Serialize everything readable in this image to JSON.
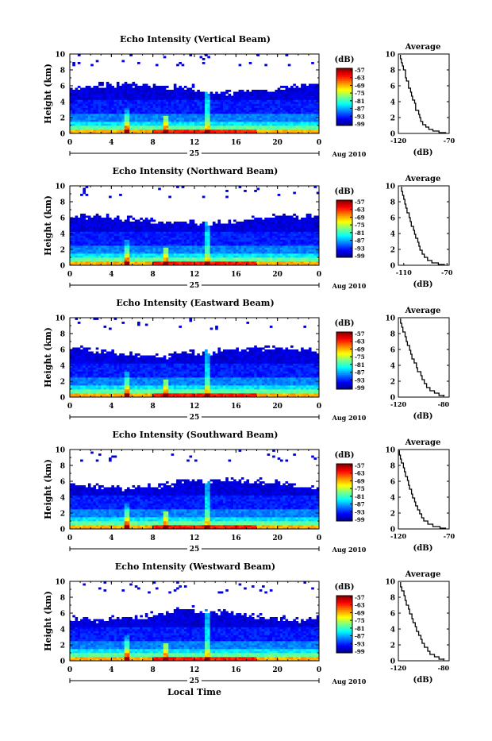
{
  "chart_data": [
    {
      "type": "heatmap",
      "title": "Echo Intensity (Vertical Beam)",
      "ylabel": "Height (km)",
      "xlabel": "",
      "x_ticks": [
        "0",
        "4",
        "8",
        "12",
        "16",
        "20",
        "0"
      ],
      "y_ticks": [
        "0",
        "2",
        "4",
        "6",
        "8",
        "10"
      ],
      "xlim": [
        0,
        24
      ],
      "ylim": [
        0,
        10
      ],
      "date_label": "25",
      "month_label": "Aug 2010",
      "colorbar": {
        "unit": "(dB)",
        "ticks": [
          "-57",
          "-63",
          "-69",
          "-75",
          "-81",
          "-87",
          "-93",
          "-99"
        ],
        "range": [
          -99,
          -57
        ]
      },
      "profile": {
        "title": "Average",
        "xlabel": "(dB)",
        "x_ticks": [
          "-120",
          "-70"
        ],
        "xlim": [
          -120,
          -70
        ],
        "points": [
          [
            -118,
            9.9
          ],
          [
            -117,
            9.4
          ],
          [
            -116,
            8.9
          ],
          [
            -115,
            8.5
          ],
          [
            -113,
            8.0
          ],
          [
            -113,
            7.5
          ],
          [
            -112,
            7.0
          ],
          [
            -110,
            6.6
          ],
          [
            -110,
            6.1
          ],
          [
            -108,
            5.7
          ],
          [
            -107,
            5.2
          ],
          [
            -106,
            4.7
          ],
          [
            -104,
            4.2
          ],
          [
            -103,
            3.8
          ],
          [
            -103,
            3.3
          ],
          [
            -100,
            2.9
          ],
          [
            -99,
            2.4
          ],
          [
            -98,
            2.0
          ],
          [
            -96,
            1.5
          ],
          [
            -93,
            1.1
          ],
          [
            -90,
            0.8
          ],
          [
            -86,
            0.5
          ],
          [
            -80,
            0.3
          ],
          [
            -73,
            0.1
          ]
        ]
      }
    },
    {
      "type": "heatmap",
      "title": "Echo Intensity (Northward Beam)",
      "ylabel": "Height (km)",
      "xlabel": "",
      "x_ticks": [
        "0",
        "4",
        "8",
        "12",
        "16",
        "20",
        "0"
      ],
      "y_ticks": [
        "0",
        "2",
        "4",
        "6",
        "8",
        "10"
      ],
      "xlim": [
        0,
        24
      ],
      "ylim": [
        0,
        10
      ],
      "date_label": "25",
      "month_label": "Aug 2010",
      "colorbar": {
        "unit": "(dB)",
        "ticks": [
          "-57",
          "-63",
          "-69",
          "-75",
          "-81",
          "-87",
          "-93",
          "-99"
        ],
        "range": [
          -99,
          -57
        ]
      },
      "profile": {
        "title": "Average",
        "xlabel": "(dB)",
        "x_ticks": [
          "-110",
          "-70"
        ],
        "xlim": [
          -115,
          -68
        ],
        "points": [
          [
            -112,
            9.9
          ],
          [
            -111,
            9.3
          ],
          [
            -110,
            8.8
          ],
          [
            -109,
            8.3
          ],
          [
            -108,
            7.7
          ],
          [
            -107,
            7.2
          ],
          [
            -105,
            6.6
          ],
          [
            -104,
            6.0
          ],
          [
            -103,
            5.5
          ],
          [
            -101,
            4.9
          ],
          [
            -100,
            4.4
          ],
          [
            -99,
            3.9
          ],
          [
            -97,
            3.4
          ],
          [
            -96,
            2.9
          ],
          [
            -95,
            2.4
          ],
          [
            -93,
            1.9
          ],
          [
            -91,
            1.4
          ],
          [
            -88,
            1.0
          ],
          [
            -84,
            0.6
          ],
          [
            -78,
            0.3
          ],
          [
            -72,
            0.1
          ]
        ]
      }
    },
    {
      "type": "heatmap",
      "title": "Echo Intensity (Eastward Beam)",
      "ylabel": "Height (km)",
      "xlabel": "",
      "x_ticks": [
        "0",
        "4",
        "8",
        "12",
        "16",
        "20",
        "0"
      ],
      "y_ticks": [
        "0",
        "2",
        "4",
        "6",
        "8",
        "10"
      ],
      "xlim": [
        0,
        24
      ],
      "ylim": [
        0,
        10
      ],
      "date_label": "25",
      "month_label": "Aug 2010",
      "colorbar": {
        "unit": "(dB)",
        "ticks": [
          "-57",
          "-63",
          "-69",
          "-75",
          "-81",
          "-87",
          "-93",
          "-99"
        ],
        "range": [
          -99,
          -57
        ]
      },
      "profile": {
        "title": "Average",
        "xlabel": "(dB)",
        "x_ticks": [
          "-120",
          "-80"
        ],
        "xlim": [
          -120,
          -75
        ],
        "points": [
          [
            -118,
            9.9
          ],
          [
            -117,
            9.3
          ],
          [
            -116,
            8.8
          ],
          [
            -114,
            8.2
          ],
          [
            -113,
            7.6
          ],
          [
            -112,
            7.0
          ],
          [
            -110,
            6.5
          ],
          [
            -109,
            5.9
          ],
          [
            -108,
            5.4
          ],
          [
            -106,
            4.8
          ],
          [
            -104,
            4.3
          ],
          [
            -103,
            3.7
          ],
          [
            -100,
            3.2
          ],
          [
            -99,
            2.7
          ],
          [
            -97,
            2.2
          ],
          [
            -95,
            1.7
          ],
          [
            -92,
            1.2
          ],
          [
            -88,
            0.8
          ],
          [
            -84,
            0.5
          ],
          [
            -79,
            0.2
          ]
        ]
      }
    },
    {
      "type": "heatmap",
      "title": "Echo Intensity (Southward Beam)",
      "ylabel": "Height (km)",
      "xlabel": "",
      "x_ticks": [
        "0",
        "4",
        "8",
        "12",
        "16",
        "20",
        "0"
      ],
      "y_ticks": [
        "0",
        "2",
        "4",
        "6",
        "8",
        "10"
      ],
      "xlim": [
        0,
        24
      ],
      "ylim": [
        0,
        10
      ],
      "date_label": "25",
      "month_label": "Aug 2010",
      "colorbar": {
        "unit": "(dB)",
        "ticks": [
          "-57",
          "-63",
          "-69",
          "-75",
          "-81",
          "-87",
          "-93",
          "-99"
        ],
        "range": [
          -99,
          -57
        ]
      },
      "profile": {
        "title": "Average",
        "xlabel": "(dB)",
        "x_ticks": [
          "-120",
          "-70"
        ],
        "xlim": [
          -120,
          -70
        ],
        "points": [
          [
            -119,
            9.9
          ],
          [
            -118,
            9.3
          ],
          [
            -117,
            8.8
          ],
          [
            -115,
            8.3
          ],
          [
            -114,
            7.7
          ],
          [
            -113,
            7.2
          ],
          [
            -111,
            6.6
          ],
          [
            -110,
            6.1
          ],
          [
            -109,
            5.5
          ],
          [
            -107,
            5.0
          ],
          [
            -106,
            4.4
          ],
          [
            -104,
            3.9
          ],
          [
            -103,
            3.4
          ],
          [
            -101,
            2.9
          ],
          [
            -99,
            2.4
          ],
          [
            -97,
            1.9
          ],
          [
            -95,
            1.4
          ],
          [
            -91,
            1.0
          ],
          [
            -86,
            0.6
          ],
          [
            -79,
            0.3
          ],
          [
            -73,
            0.1
          ]
        ]
      }
    },
    {
      "type": "heatmap",
      "title": "Echo Intensity (Westward Beam)",
      "ylabel": "Height (km)",
      "xlabel": "Local Time",
      "x_ticks": [
        "0",
        "4",
        "8",
        "12",
        "16",
        "20",
        "0"
      ],
      "y_ticks": [
        "0",
        "2",
        "4",
        "6",
        "8",
        "10"
      ],
      "xlim": [
        0,
        24
      ],
      "ylim": [
        0,
        10
      ],
      "date_label": "25",
      "month_label": "Aug 2010",
      "colorbar": {
        "unit": "(dB)",
        "ticks": [
          "-57",
          "-63",
          "-69",
          "-75",
          "-81",
          "-87",
          "-93",
          "-99"
        ],
        "range": [
          -99,
          -57
        ]
      },
      "profile": {
        "title": "Average",
        "xlabel": "(dB)",
        "x_ticks": [
          "-120",
          "-80"
        ],
        "xlim": [
          -120,
          -75
        ],
        "points": [
          [
            -118,
            9.9
          ],
          [
            -117,
            9.3
          ],
          [
            -115,
            8.8
          ],
          [
            -114,
            8.2
          ],
          [
            -113,
            7.6
          ],
          [
            -111,
            7.0
          ],
          [
            -110,
            6.5
          ],
          [
            -108,
            5.9
          ],
          [
            -107,
            5.3
          ],
          [
            -105,
            4.8
          ],
          [
            -104,
            4.3
          ],
          [
            -102,
            3.7
          ],
          [
            -100,
            3.2
          ],
          [
            -99,
            2.7
          ],
          [
            -97,
            2.2
          ],
          [
            -94,
            1.7
          ],
          [
            -92,
            1.2
          ],
          [
            -88,
            0.8
          ],
          [
            -84,
            0.5
          ],
          [
            -79,
            0.2
          ]
        ]
      }
    }
  ]
}
